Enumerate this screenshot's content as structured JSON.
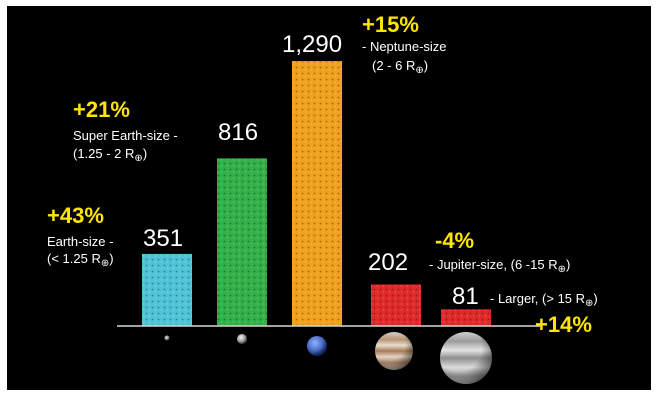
{
  "chart_data": {
    "type": "bar",
    "categories": [
      "Earth-size",
      "Super Earth-size",
      "Neptune-size",
      "Jupiter-size",
      "Larger"
    ],
    "values": [
      351,
      816,
      1290,
      202,
      81
    ],
    "value_labels": [
      "351",
      "816",
      "1,290",
      "202",
      "81"
    ],
    "size_ranges": [
      "(< 1.25 R",
      "(1.25 - 2 R",
      "(2 - 6 R",
      "(6 -15 R",
      "(> 15 R"
    ],
    "changes": [
      "+43%",
      "+21%",
      "+15%",
      "-4%",
      "+14%"
    ],
    "ylim": [
      0,
      1290
    ],
    "grid": false,
    "legend": "none",
    "colors": [
      "#4fc4d6",
      "#34b049",
      "#f0a21e",
      "#e02a2a",
      "#e02a2a"
    ],
    "planet_icons": [
      "small-rocky-planet-icon",
      "grey-planet-icon",
      "blue-planet-icon",
      "jupiter-icon",
      "large-gas-giant-icon"
    ]
  },
  "subscript_symbol": "⊕",
  "closing_paren": ")",
  "separator": "-",
  "comma": ","
}
